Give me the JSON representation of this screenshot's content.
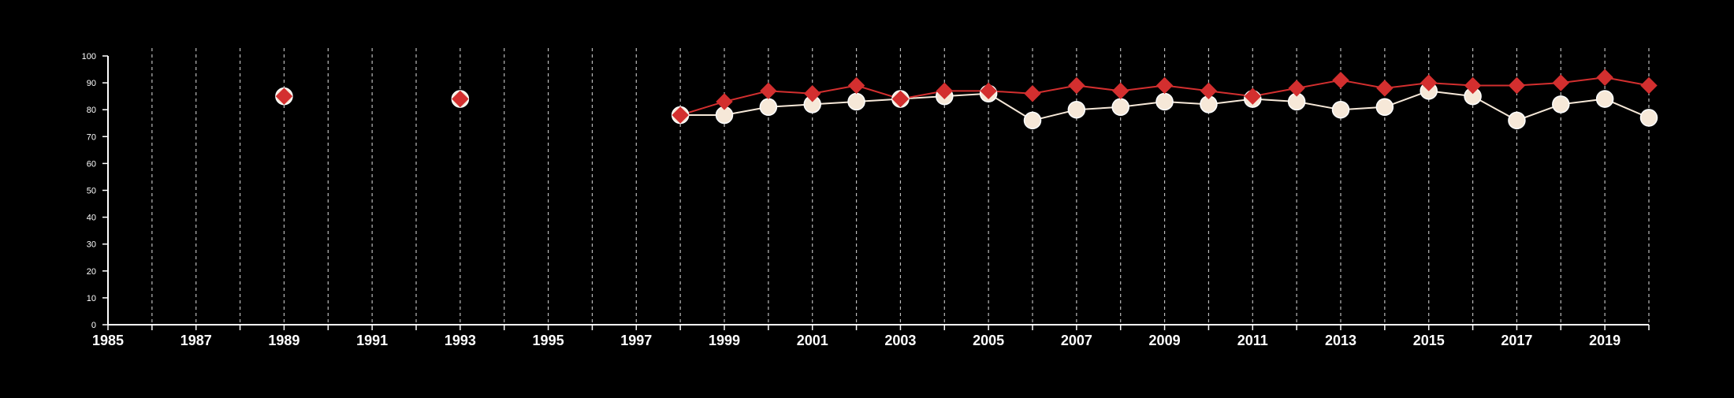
{
  "chart_data": {
    "type": "line",
    "title": "",
    "xlabel": "",
    "ylabel": "",
    "xlim": [
      1985,
      2020
    ],
    "ylim": [
      0,
      100
    ],
    "x_ticks": [
      1985,
      1986,
      1987,
      1988,
      1989,
      1990,
      1991,
      1992,
      1993,
      1994,
      1995,
      1996,
      1997,
      1998,
      1999,
      2000,
      2001,
      2002,
      2003,
      2004,
      2005,
      2006,
      2007,
      2008,
      2009,
      2010,
      2011,
      2012,
      2013,
      2014,
      2015,
      2016,
      2017,
      2018,
      2019,
      2020
    ],
    "x_tick_labels": [
      "1985",
      "1987",
      "1989",
      "1991",
      "1993",
      "1995",
      "1997",
      "1999",
      "2001",
      "2003",
      "2005",
      "2007",
      "2009",
      "2011",
      "2013",
      "2015",
      "2017",
      "2019"
    ],
    "y_ticks": [
      0,
      10,
      20,
      30,
      40,
      50,
      60,
      70,
      80,
      90,
      100
    ],
    "y_tick_labels": [
      "0",
      "10",
      "20",
      "30",
      "40",
      "50",
      "60",
      "70",
      "80",
      "90",
      "100"
    ],
    "grid": "vertical dashed",
    "legend": "none",
    "series": [
      {
        "marker": "circle",
        "color": "#f6e8d8",
        "points": [
          [
            1989,
            85
          ],
          [
            1993,
            84
          ],
          [
            1998,
            78
          ],
          [
            1999,
            78
          ],
          [
            2000,
            81
          ],
          [
            2001,
            82
          ],
          [
            2002,
            83
          ],
          [
            2003,
            84
          ],
          [
            2004,
            85
          ],
          [
            2005,
            86
          ],
          [
            2006,
            76
          ],
          [
            2007,
            80
          ],
          [
            2008,
            81
          ],
          [
            2009,
            83
          ],
          [
            2010,
            82
          ],
          [
            2011,
            84
          ],
          [
            2012,
            83
          ],
          [
            2013,
            80
          ],
          [
            2014,
            81
          ],
          [
            2015,
            87
          ],
          [
            2016,
            85
          ],
          [
            2017,
            76
          ],
          [
            2018,
            82
          ],
          [
            2019,
            84
          ],
          [
            2020,
            77
          ]
        ]
      },
      {
        "marker": "diamond",
        "color": "#d32f2f",
        "points": [
          [
            1989,
            85
          ],
          [
            1993,
            84
          ],
          [
            1998,
            78
          ],
          [
            1999,
            83
          ],
          [
            2000,
            87
          ],
          [
            2001,
            86
          ],
          [
            2002,
            89
          ],
          [
            2003,
            84
          ],
          [
            2004,
            87
          ],
          [
            2005,
            87
          ],
          [
            2006,
            86
          ],
          [
            2007,
            89
          ],
          [
            2008,
            87
          ],
          [
            2009,
            89
          ],
          [
            2010,
            87
          ],
          [
            2011,
            85
          ],
          [
            2012,
            88
          ],
          [
            2013,
            91
          ],
          [
            2014,
            88
          ],
          [
            2015,
            90
          ],
          [
            2016,
            89
          ],
          [
            2017,
            89
          ],
          [
            2018,
            90
          ],
          [
            2019,
            92
          ],
          [
            2020,
            89
          ]
        ]
      }
    ]
  }
}
